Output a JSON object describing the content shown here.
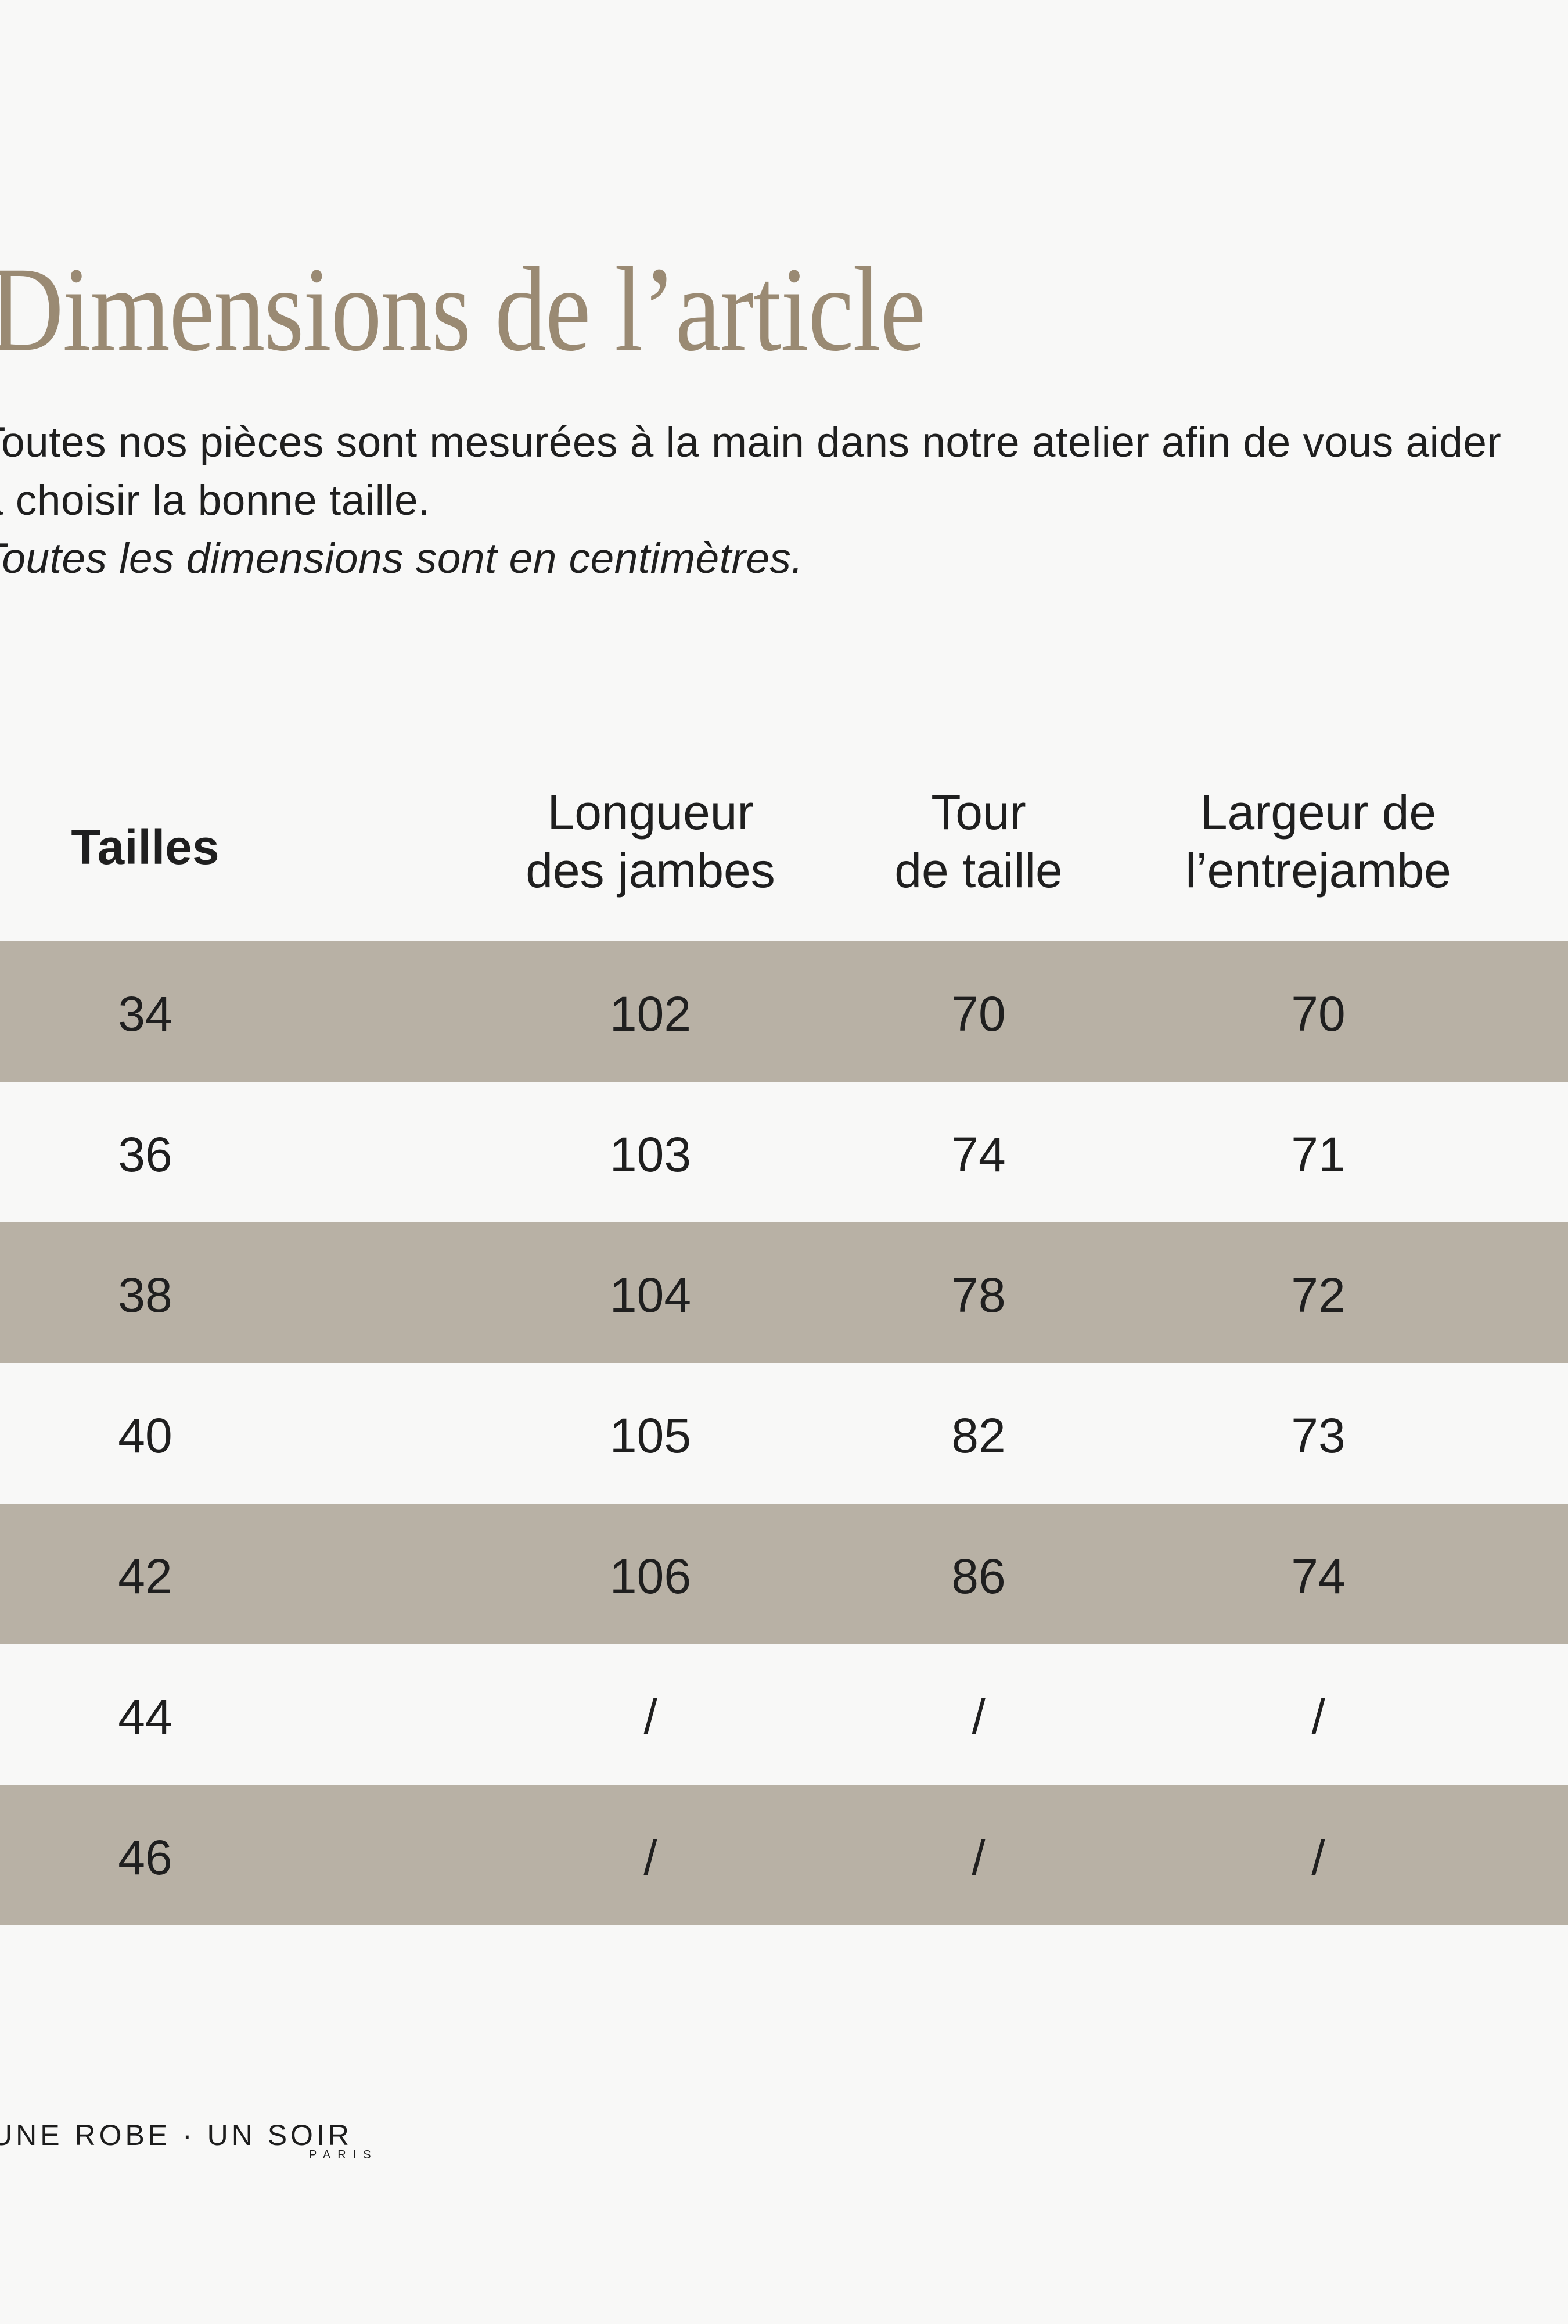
{
  "theme": {
    "bg": "#f8f8f7",
    "shade": "#b8b1a5",
    "title": "#9a8a73",
    "text": "#1f1f1f"
  },
  "header": {
    "title": "Dimensions de l’article"
  },
  "intro": {
    "line1": "Toutes nos pièces sont mesurées à la main dans notre atelier afin de vous aider",
    "line2": "à choisir la bonne taille.",
    "note": "Toutes les dimensions sont en centimètres."
  },
  "table": {
    "columns": [
      "Tailles",
      "Longueur\ndes jambes",
      "Tour\nde taille",
      "Largeur de\nl’entrejambe"
    ],
    "rows": [
      {
        "cells": [
          "34",
          "102",
          "70",
          "70"
        ]
      },
      {
        "cells": [
          "36",
          "103",
          "74",
          "71"
        ]
      },
      {
        "cells": [
          "38",
          "104",
          "78",
          "72"
        ]
      },
      {
        "cells": [
          "40",
          "105",
          "82",
          "73"
        ]
      },
      {
        "cells": [
          "42",
          "106",
          "86",
          "74"
        ]
      },
      {
        "cells": [
          "44",
          "/",
          "/",
          "/"
        ]
      },
      {
        "cells": [
          "46",
          "/",
          "/",
          "/"
        ]
      }
    ]
  },
  "footer": {
    "brand": "UNE ROBE · UN SOIR",
    "city": "PARIS"
  }
}
